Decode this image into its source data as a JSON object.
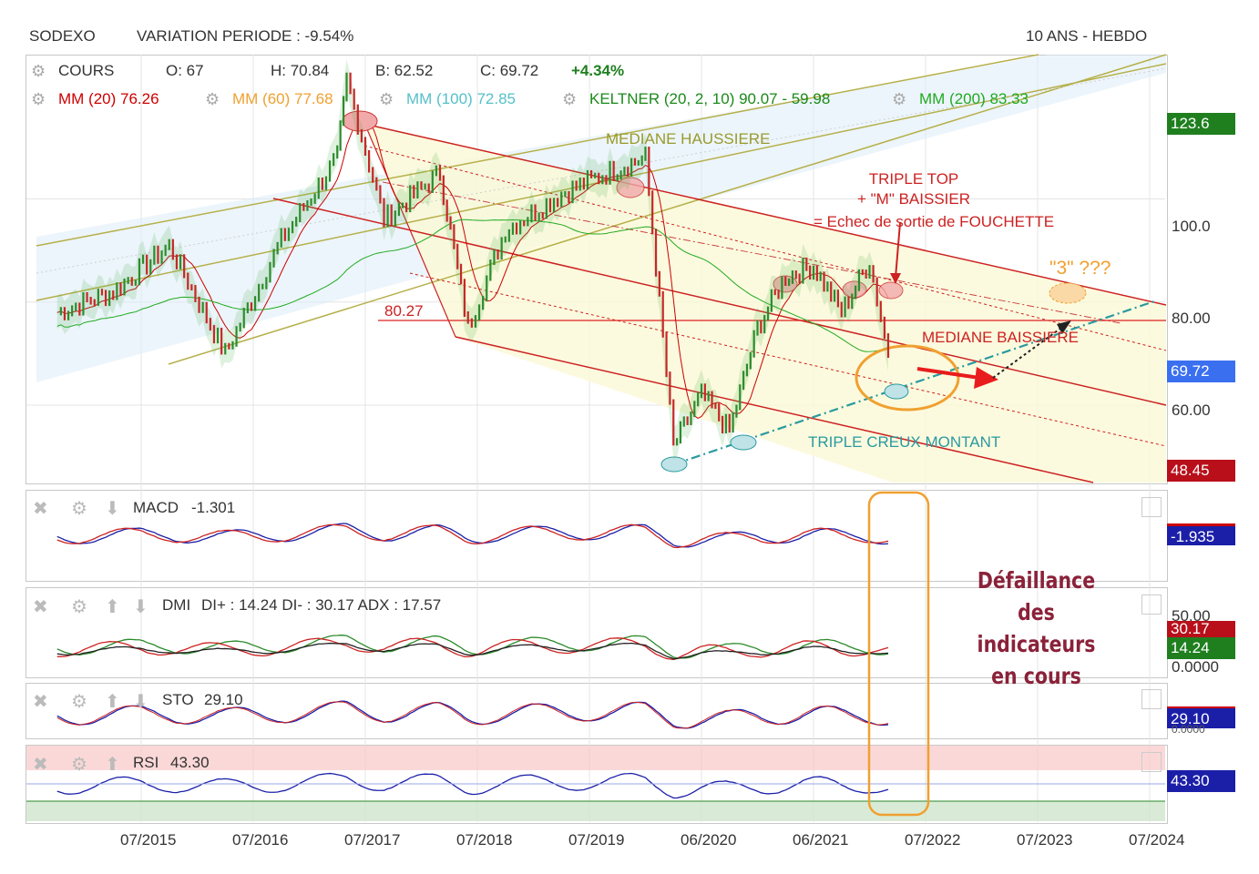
{
  "header": {
    "ticker": "SODEXO",
    "variation": "VARIATION PERIODE : -9.54%",
    "range": "10 ANS - HEBDO"
  },
  "legend": {
    "cours": "COURS",
    "open": "O: 67",
    "high": "H: 70.84",
    "low": "B: 62.52",
    "close": "C: 69.72",
    "change": "+4.34%",
    "mm20": "MM (20) 76.26",
    "mm60": "MM (60) 77.68",
    "mm100": "MM (100) 72.85",
    "keltner": "KELTNER (20, 2, 10) 90.07 - 59.98",
    "mm200": "MM (200) 83.33"
  },
  "annotations": {
    "mediane_haussiere": "MEDIANE HAUSSIERE",
    "triple_top": [
      "TRIPLE TOP",
      "+ \"M\" BAISSIER",
      "= Echec de sortie de FOUCHETTE"
    ],
    "three": "\"3\" ???",
    "level": "80.27",
    "mediane_baissiere": "MEDIANE BAISSIERE",
    "triple_creux": "TRIPLE CREUX MONTANT",
    "note": [
      "Défaillance",
      "des",
      "indicateurs",
      "en cours"
    ]
  },
  "y_ticks": [
    "123.6",
    "100.0",
    "80.00",
    "69.72",
    "60.00",
    "48.45"
  ],
  "price_badges": {
    "high_badge": "123.6",
    "last": "69.72",
    "low_badge": "48.45"
  },
  "indicators": {
    "macd": {
      "label": "MACD",
      "value": "-1.301",
      "badge": "-1.935"
    },
    "dmi": {
      "label": "DMI",
      "value": "DI+ : 14.24 DI- : 30.17 ADX : 17.57",
      "tick": "50.00",
      "badge1": "30.17",
      "badge2": "14.24",
      "zero": "0.0000"
    },
    "sto": {
      "label": "STO",
      "value": "29.10",
      "badge": "29.10",
      "zero": "0.0000"
    },
    "rsi": {
      "label": "RSI",
      "value": "43.30",
      "badge": "43.30"
    }
  },
  "x_labels": [
    "07/2015",
    "07/2016",
    "07/2017",
    "07/2018",
    "07/2019",
    "06/2020",
    "06/2021",
    "07/2022",
    "07/2023",
    "07/2024"
  ],
  "colors": {
    "up": "#2e8b2e",
    "down": "#c62828",
    "mm20": "#cc0000",
    "mm60": "#f0a030",
    "mm100": "#55c0c8",
    "keltner": "#1a8a1a",
    "mm200": "#22aa22",
    "blue_badge": "#3a6ff0",
    "red_badge": "#b80f1a",
    "green_badge": "#1f7f1f",
    "navy_badge": "#1b1fa8"
  },
  "chart_data": {
    "type": "line",
    "title": "SODEXO",
    "x": [
      "2014-10",
      "2015-04",
      "2015-10",
      "2016-04",
      "2016-10",
      "2017-04",
      "2017-05",
      "2017-09",
      "2018-03",
      "2018-06",
      "2018-10",
      "2019-04",
      "2019-10",
      "2020-01",
      "2020-04",
      "2020-07",
      "2020-10",
      "2021-01",
      "2021-04",
      "2021-07",
      "2021-10",
      "2022-01",
      "2022-03"
    ],
    "series": [
      {
        "name": "COURS",
        "values": [
          78,
          82,
          91,
          70,
          92,
          108,
          123,
          96,
          105,
          75,
          94,
          101,
          106,
          108,
          52,
          62,
          55,
          75,
          85,
          87,
          78,
          88,
          69.72
        ]
      }
    ],
    "ylabel": "",
    "xlabel": "",
    "ylim": [
      45,
      128
    ],
    "grid": true,
    "levels": {
      "resistance": 80.27
    }
  }
}
